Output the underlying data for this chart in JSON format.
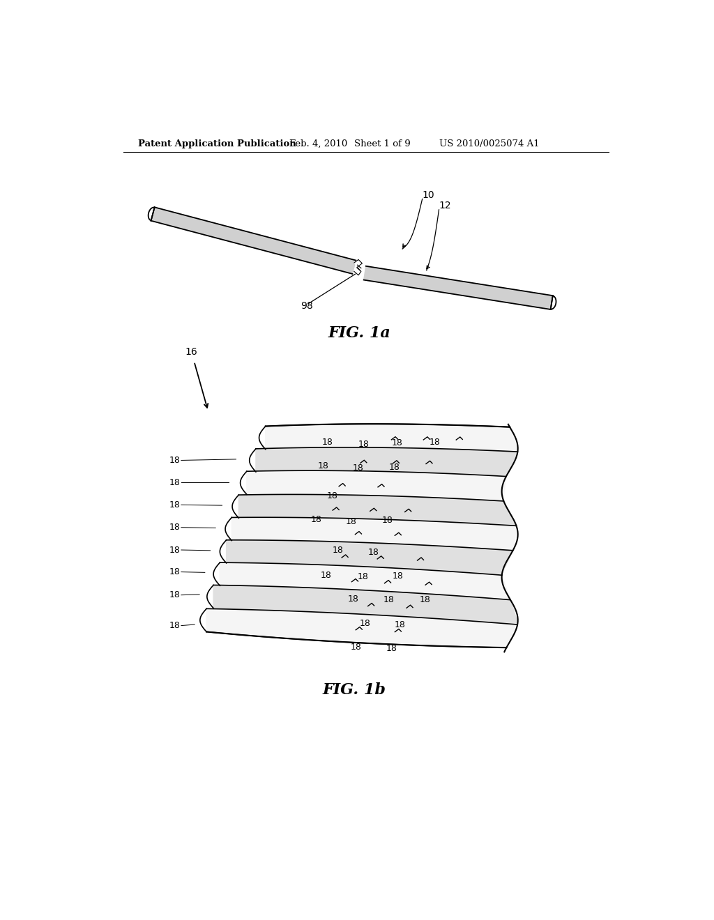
{
  "background_color": "#ffffff",
  "header_text": "Patent Application Publication",
  "header_date": "Feb. 4, 2010",
  "header_sheet": "Sheet 1 of 9",
  "header_patent": "US 2010/0025074 A1",
  "fig1a_label": "FIG. 1a",
  "fig1b_label": "FIG. 1b",
  "label_10": "10",
  "label_12": "12",
  "label_16": "16",
  "label_98": "98",
  "label_18": "18",
  "text_color": "#000000",
  "line_color": "#000000",
  "wire_fill": "#d0d0d0",
  "layer_fill_light": "#f5f5f5",
  "layer_fill_dark": "#e0e0e0"
}
